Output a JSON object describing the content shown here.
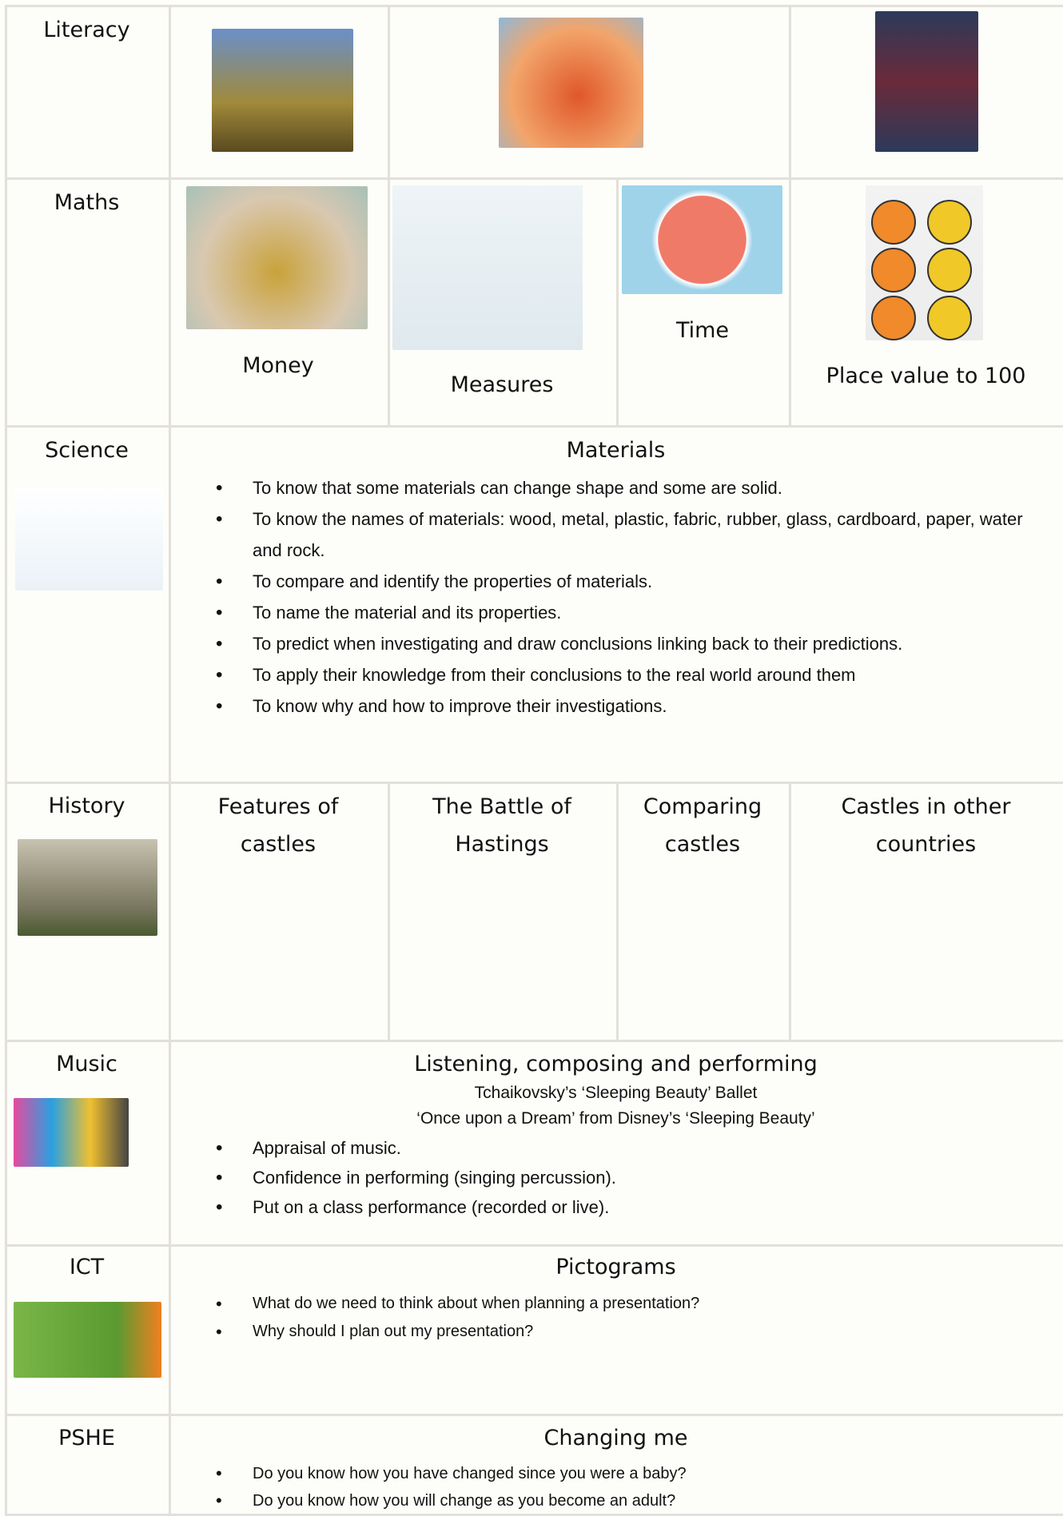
{
  "rows": [
    {
      "subject": "Literacy"
    },
    {
      "subject": "Maths",
      "items": [
        "Money",
        "Measures",
        "Time",
        "Place value to 100"
      ]
    },
    {
      "subject": "Science",
      "heading": "Materials",
      "bullets": [
        "To know that some materials can change shape and some are solid.",
        "To know the names of materials: wood, metal, plastic, fabric, rubber, glass, cardboard, paper, water and rock.",
        "To compare and identify the properties of materials.",
        "To name the material and its properties.",
        "To predict when investigating and draw conclusions linking back to their predictions.",
        "To apply their knowledge from their conclusions to the real world around them",
        "To know why and how to improve their investigations."
      ]
    },
    {
      "subject": "History",
      "items": [
        "Features of castles",
        "The Battle of Hastings",
        "Comparing castles",
        "Castles in other countries"
      ]
    },
    {
      "subject": "Music",
      "heading": "Listening, composing and performing",
      "subheadings": [
        "Tchaikovsky’s ‘Sleeping Beauty’ Ballet",
        "‘Once upon a Dream’ from Disney’s ‘Sleeping Beauty’"
      ],
      "bullets": [
        "Appraisal of music.",
        "Confidence in performing (singing percussion).",
        "Put on a class performance (recorded or live)."
      ]
    },
    {
      "subject": "ICT",
      "heading": "Pictograms",
      "bullets": [
        "What do we need to think about when planning a presentation?",
        "Why should I plan out my presentation?"
      ]
    },
    {
      "subject": "PSHE",
      "heading": "Changing me",
      "bullets": [
        "Do you know how you have changed since you were a baby?",
        "Do you know how you will change as you become an adult?"
      ]
    }
  ]
}
